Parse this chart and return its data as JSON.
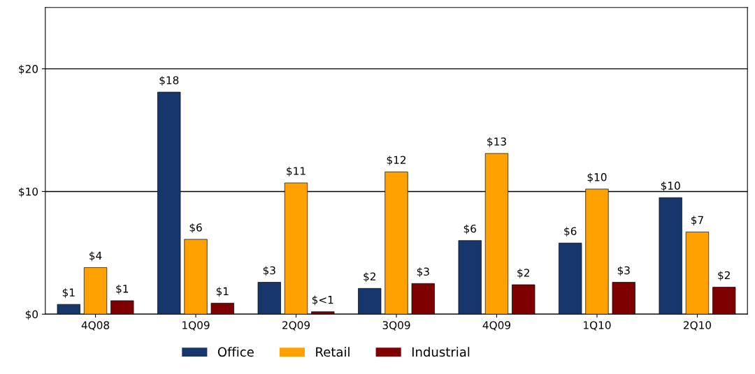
{
  "chart_data": {
    "type": "bar",
    "categories": [
      "4Q08",
      "1Q09",
      "2Q09",
      "3Q09",
      "4Q09",
      "1Q10",
      "2Q10"
    ],
    "series": [
      {
        "name": "Office",
        "color": "#17366b",
        "values": [
          0.8,
          18.1,
          2.6,
          2.1,
          6.0,
          5.8,
          9.5
        ],
        "value_labels": [
          "$1",
          "$18",
          "$3",
          "$2",
          "$6",
          "$6",
          "$10"
        ]
      },
      {
        "name": "Retail",
        "color": "#ffa100",
        "values": [
          3.8,
          6.1,
          10.7,
          11.6,
          13.1,
          10.2,
          6.7
        ],
        "value_labels": [
          "$4",
          "$6",
          "$11",
          "$12",
          "$13",
          "$10",
          "$7"
        ]
      },
      {
        "name": "Industrial",
        "color": "#7f0000",
        "values": [
          1.1,
          0.9,
          0.2,
          2.5,
          2.4,
          2.6,
          2.2
        ],
        "value_labels": [
          "$1",
          "$1",
          "$<1",
          "$3",
          "$2",
          "$3",
          "$2"
        ]
      }
    ],
    "ylim": [
      0,
      25
    ],
    "yticks": [
      {
        "value": 0,
        "label": "$0"
      },
      {
        "value": 10,
        "label": "$10"
      },
      {
        "value": 20,
        "label": "$20"
      }
    ],
    "grid": "y",
    "legend": "bottom"
  }
}
